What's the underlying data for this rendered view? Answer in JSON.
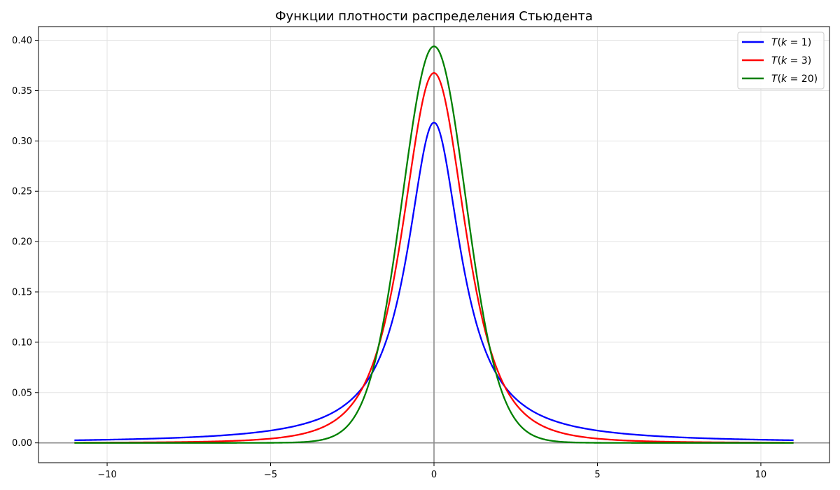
{
  "chart_data": {
    "type": "line",
    "title": "Функции плотности распределения Стьюдента",
    "xlabel": "",
    "ylabel": "",
    "xlim": [
      -12.1,
      12.1
    ],
    "ylim": [
      -0.0197,
      0.4136
    ],
    "x_range": [
      -11,
      11
    ],
    "x_ticks": [
      -10,
      -5,
      0,
      5,
      10
    ],
    "x_tick_labels": [
      "−10",
      "−5",
      "0",
      "5",
      "10"
    ],
    "y_ticks": [
      0.0,
      0.05,
      0.1,
      0.15,
      0.2,
      0.25,
      0.3,
      0.35,
      0.4
    ],
    "y_tick_labels": [
      "0.00",
      "0.05",
      "0.10",
      "0.15",
      "0.20",
      "0.25",
      "0.30",
      "0.35",
      "0.40"
    ],
    "grid": true,
    "reference_lines": [
      "x = 0",
      "y = 0"
    ],
    "legend_placement": "top-right",
    "series": [
      {
        "name": "T(k = 1)",
        "label_prefix": "T(k = ",
        "label_k": "1",
        "label_suffix": ")",
        "k": 1,
        "color": "#0000ff",
        "peak": 0.3183,
        "x": [
          -11,
          -10,
          -9,
          -8,
          -7,
          -6,
          -5,
          -4,
          -3,
          -2.5,
          -2,
          -1.5,
          -1,
          -0.75,
          -0.5,
          -0.25,
          0,
          0.25,
          0.5,
          0.75,
          1,
          1.5,
          2,
          2.5,
          3,
          4,
          5,
          6,
          7,
          8,
          9,
          10,
          11
        ],
        "y": [
          0.0026,
          0.0032,
          0.0039,
          0.0049,
          0.0064,
          0.0086,
          0.0122,
          0.0187,
          0.0318,
          0.0439,
          0.0637,
          0.0979,
          0.1592,
          0.2037,
          0.2546,
          0.2996,
          0.3183,
          0.2996,
          0.2546,
          0.2037,
          0.1592,
          0.0979,
          0.0637,
          0.0439,
          0.0318,
          0.0187,
          0.0122,
          0.0086,
          0.0064,
          0.0049,
          0.0039,
          0.0032,
          0.0026
        ]
      },
      {
        "name": "T(k = 3)",
        "label_prefix": "T(k = ",
        "label_k": "3",
        "label_suffix": ")",
        "k": 3,
        "color": "#ff0000",
        "peak": 0.3676,
        "x": [
          -11,
          -10,
          -9,
          -8,
          -7,
          -6,
          -5,
          -4,
          -3,
          -2.5,
          -2,
          -1.5,
          -1,
          -0.75,
          -0.5,
          -0.25,
          0,
          0.25,
          0.5,
          0.75,
          1,
          1.5,
          2,
          2.5,
          3,
          4,
          5,
          6,
          7,
          8,
          9,
          10,
          11
        ],
        "y": [
          0.0004,
          0.0006,
          0.0008,
          0.0012,
          0.0019,
          0.0031,
          0.0042,
          0.0092,
          0.023,
          0.0382,
          0.0675,
          0.1258,
          0.2067,
          0.2624,
          0.3125,
          0.3548,
          0.3676,
          0.3548,
          0.3125,
          0.2624,
          0.2067,
          0.1258,
          0.0675,
          0.0382,
          0.023,
          0.0092,
          0.0042,
          0.0031,
          0.0019,
          0.0012,
          0.0008,
          0.0006,
          0.0004
        ]
      },
      {
        "name": "T(k = 20)",
        "label_prefix": "T(k = ",
        "label_k": "20",
        "label_suffix": ")",
        "k": 20,
        "color": "#008000",
        "peak": 0.394,
        "x": [
          -11,
          -10,
          -9,
          -8,
          -7,
          -6,
          -5,
          -4,
          -3.5,
          -3,
          -2.5,
          -2,
          -1.5,
          -1,
          -0.75,
          -0.5,
          -0.25,
          0,
          0.25,
          0.5,
          0.75,
          1,
          1.5,
          2,
          2.5,
          3,
          3.5,
          4,
          5,
          6,
          7,
          8,
          9,
          10,
          11
        ],
        "y": [
          0.0,
          0.0,
          0.0,
          0.0,
          0.0,
          0.0,
          0.0,
          0.0,
          0.0019,
          0.0065,
          0.0203,
          0.0581,
          0.1283,
          0.236,
          0.2992,
          0.3495,
          0.3818,
          0.394,
          0.3818,
          0.3495,
          0.2992,
          0.236,
          0.1283,
          0.0581,
          0.0203,
          0.0065,
          0.0019,
          0.0006,
          0.0,
          0.0,
          0.0,
          0.0,
          0.0,
          0.0,
          0.0
        ]
      }
    ]
  }
}
